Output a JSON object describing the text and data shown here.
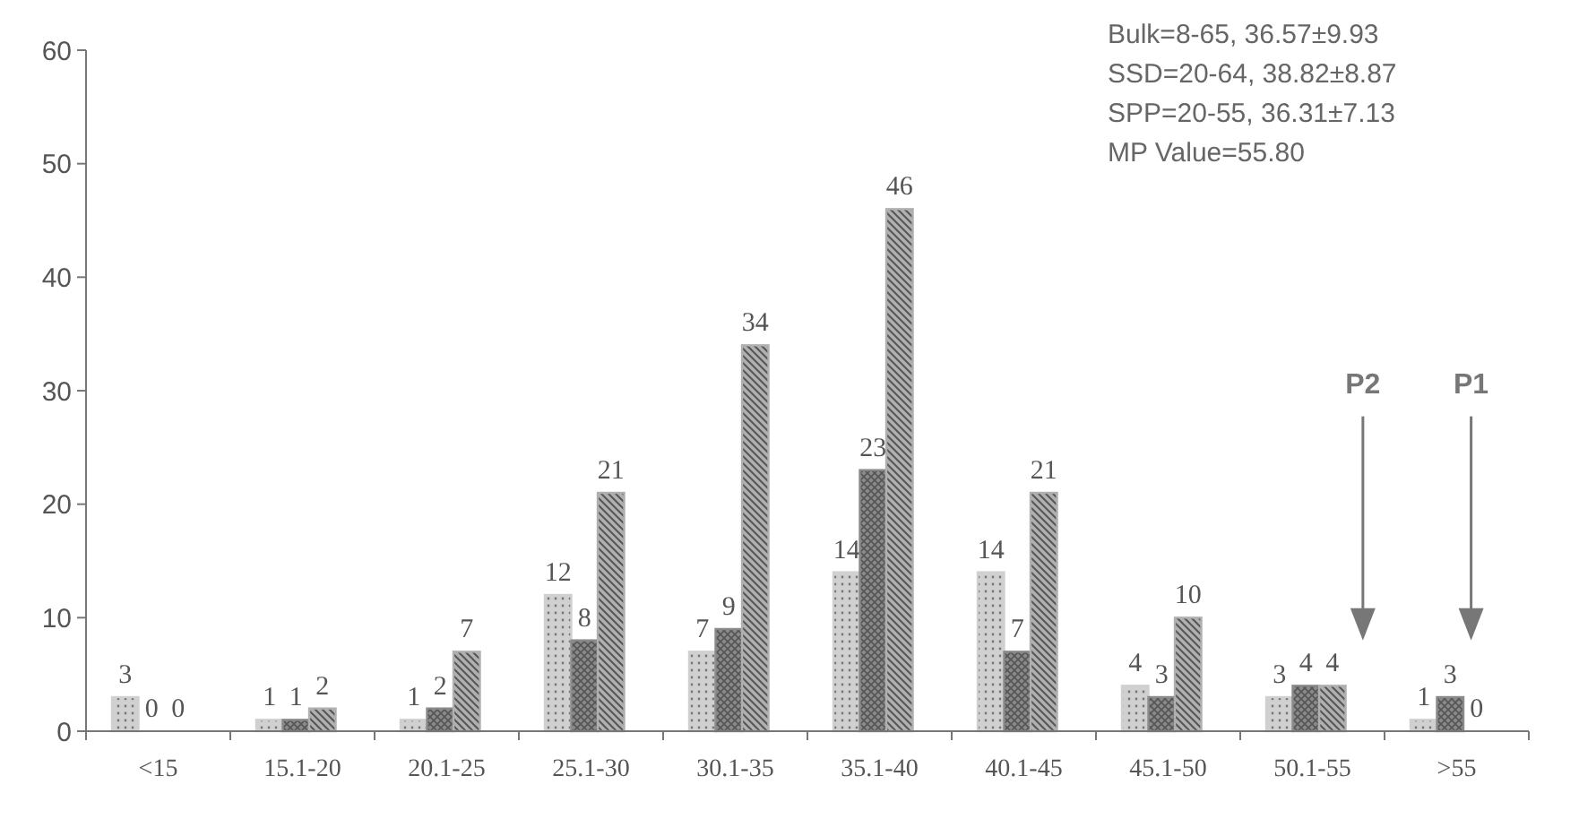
{
  "chart_data": {
    "type": "bar",
    "categories": [
      "<15",
      "15.1-20",
      "20.1-25",
      "25.1-30",
      "30.1-35",
      "35.1-40",
      "40.1-45",
      "45.1-50",
      "50.1-55",
      ">55"
    ],
    "series": [
      {
        "color": "#d0d0d0",
        "values": [
          3,
          1,
          1,
          12,
          7,
          14,
          14,
          4,
          3,
          1
        ]
      },
      {
        "color": "#8a8a8a",
        "values": [
          0,
          1,
          2,
          8,
          9,
          23,
          7,
          3,
          4,
          3
        ]
      },
      {
        "color": "#b0b0b0",
        "values": [
          0,
          2,
          7,
          21,
          34,
          46,
          21,
          10,
          4,
          0
        ]
      }
    ],
    "ylim": [
      0,
      60
    ],
    "yticks": [
      0,
      10,
      20,
      30,
      40,
      50,
      60
    ],
    "grid": false,
    "legend": false,
    "data_labels": true,
    "annotations": [
      "Bulk=8-65, 36.57±9.93",
      "SSD=20-64, 38.82±8.87",
      "SPP=20-55, 36.31±7.13",
      "MP Value=55.80",
      "P2",
      "P1"
    ]
  }
}
